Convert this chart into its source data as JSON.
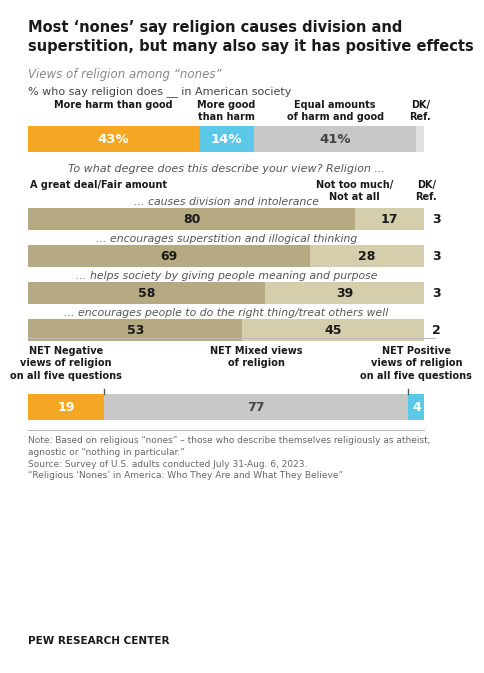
{
  "title": "Most ‘nones’ say religion causes division and\nsuperstition, but many also say it has positive effects",
  "subtitle": "Views of religion among “nones”",
  "q1_label": "% who say religion does __ in American society",
  "q1_col_labels": [
    "More harm than good",
    "More good\nthan harm",
    "Equal amounts\nof harm and good",
    "DK/\nRef."
  ],
  "q1_values": [
    43,
    14,
    41,
    2
  ],
  "q1_colors": [
    "#F5A623",
    "#5BC8E8",
    "#C8C8C8",
    "#E0E0E0"
  ],
  "q1_text_colors": [
    "#FFFFFF",
    "#FFFFFF",
    "#444444",
    "#444444"
  ],
  "q2_intro": "To what degree does this describe your view? Religion ...",
  "q2_col_label_left": "A great deal/Fair amount",
  "q2_col_label_mid": "Not too much/\nNot at all",
  "q2_col_label_right": "DK/\nRef.",
  "q2_rows": [
    {
      "label": "... causes division and intolerance",
      "values": [
        80,
        17,
        3
      ]
    },
    {
      "label": "... encourages superstition and illogical thinking",
      "values": [
        69,
        28,
        3
      ]
    },
    {
      "label": "... helps society by giving people meaning and purpose",
      "values": [
        58,
        39,
        3
      ]
    },
    {
      "label": "... encourages people to do the right thing/treat others well",
      "values": [
        53,
        45,
        2
      ]
    }
  ],
  "q2_bar_color1": "#B5AA82",
  "q2_bar_color2": "#D4CEAC",
  "net_col_labels": [
    "NET Negative\nviews of religion\non all five questions",
    "NET Mixed views\nof religion",
    "NET Positive\nviews of religion\non all five questions"
  ],
  "net_values": [
    19,
    77,
    4
  ],
  "net_colors": [
    "#F5A623",
    "#C8C8C8",
    "#5BC8E8"
  ],
  "net_text_colors": [
    "#FFFFFF",
    "#444444",
    "#FFFFFF"
  ],
  "note": "Note: Based on religious “nones” – those who describe themselves religiously as atheist,\nagnostic or “nothing in particular.”\nSource: Survey of U.S. adults conducted July 31-Aug. 6, 2023.\n“Religious ‘Nones’ in America: Who They Are and What They Believe”",
  "footer": "PEW RESEARCH CENTER",
  "bg_color": "#FFFFFF"
}
